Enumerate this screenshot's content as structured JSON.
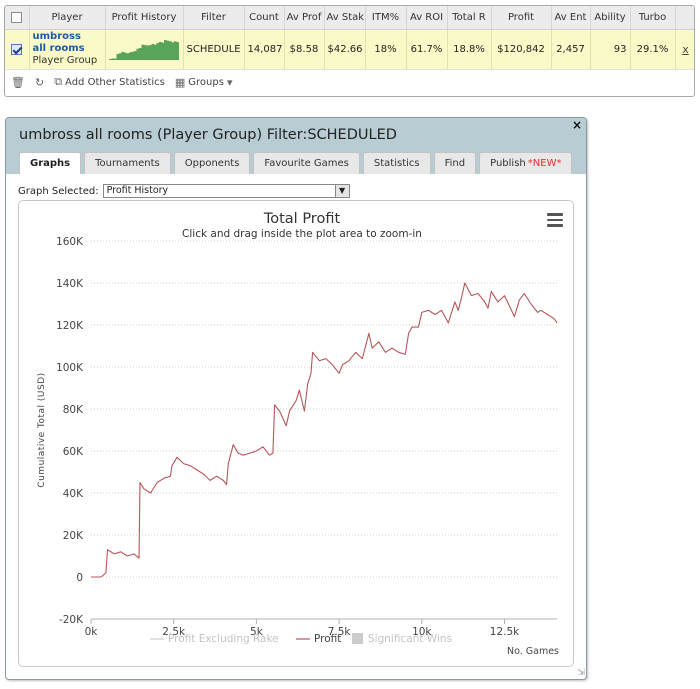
{
  "stats_table": {
    "headers": [
      "Player",
      "Profit History",
      "Filter",
      "Count",
      "Av Prof",
      "Av Stak",
      "ITM%",
      "Av ROI",
      "Total R",
      "Profit",
      "Av Ent",
      "Ability",
      "Turbo"
    ],
    "row": {
      "player_name_line1": "umbross",
      "player_name_line2": "all rooms",
      "player_type": "Player Group",
      "filter": "SCHEDULE",
      "count": "14,087",
      "av_profit": "$8.58",
      "av_stake": "$42.66",
      "itm": "18%",
      "av_roi": "61.7%",
      "total_roi": "18.8%",
      "profit": "$120,842",
      "av_entrants": "2,457",
      "ability": "93",
      "turbo": "29.1%",
      "remove": "x"
    },
    "sparkline_color": "#5aa35a",
    "toolbar": {
      "add_stats": "Add Other Statistics",
      "groups": "Groups"
    }
  },
  "dialog": {
    "title": "umbross all rooms (Player Group) Filter:SCHEDULED",
    "close": "×",
    "tabs": [
      "Graphs",
      "Tournaments",
      "Opponents",
      "Favourite Games",
      "Statistics",
      "Find",
      "Publish"
    ],
    "publish_badge": "*NEW*",
    "graph_selected_label": "Graph Selected:",
    "graph_selected_value": "Profit History"
  },
  "chart_data": {
    "type": "line",
    "title": "Total Profit",
    "subtitle": "Click and drag inside the plot area to zoom-in",
    "xlabel": "No. Games",
    "ylabel": "Cumulative Total (USD)",
    "xlim": [
      0,
      14087
    ],
    "ylim": [
      -20000,
      160000
    ],
    "x_ticks": [
      0,
      2500,
      5000,
      7500,
      10000,
      12500
    ],
    "x_tick_labels": [
      "0k",
      "2.5k",
      "5k",
      "7.5k",
      "10k",
      "12.5k"
    ],
    "y_ticks": [
      -20000,
      0,
      20000,
      40000,
      60000,
      80000,
      100000,
      120000,
      140000,
      160000
    ],
    "y_tick_labels": [
      "-20K",
      "0",
      "20K",
      "40K",
      "60K",
      "80K",
      "100K",
      "120K",
      "140K",
      "160K"
    ],
    "grid": true,
    "legend": [
      "Profit Excluding Rake",
      "Profit",
      "Significant Wins"
    ],
    "line_color": "#b5575a",
    "series": [
      {
        "name": "Profit",
        "points": [
          [
            0,
            0
          ],
          [
            300,
            0
          ],
          [
            450,
            2000
          ],
          [
            500,
            13000
          ],
          [
            700,
            11000
          ],
          [
            900,
            12000
          ],
          [
            1100,
            10000
          ],
          [
            1300,
            11000
          ],
          [
            1450,
            9000
          ],
          [
            1480,
            45000
          ],
          [
            1600,
            42000
          ],
          [
            1800,
            40000
          ],
          [
            2000,
            45000
          ],
          [
            2200,
            47000
          ],
          [
            2400,
            48000
          ],
          [
            2450,
            53000
          ],
          [
            2600,
            57000
          ],
          [
            2800,
            54000
          ],
          [
            3000,
            53000
          ],
          [
            3200,
            51000
          ],
          [
            3400,
            49000
          ],
          [
            3600,
            46000
          ],
          [
            3800,
            48000
          ],
          [
            4000,
            46000
          ],
          [
            4100,
            44000
          ],
          [
            4150,
            54000
          ],
          [
            4300,
            63000
          ],
          [
            4450,
            59000
          ],
          [
            4600,
            58000
          ],
          [
            4800,
            59000
          ],
          [
            5000,
            60000
          ],
          [
            5200,
            62000
          ],
          [
            5400,
            58000
          ],
          [
            5500,
            59000
          ],
          [
            5550,
            82000
          ],
          [
            5700,
            79000
          ],
          [
            5900,
            72000
          ],
          [
            6000,
            79000
          ],
          [
            6200,
            84000
          ],
          [
            6300,
            89000
          ],
          [
            6450,
            79000
          ],
          [
            6550,
            92000
          ],
          [
            6650,
            97000
          ],
          [
            6700,
            107000
          ],
          [
            6900,
            103000
          ],
          [
            7100,
            104000
          ],
          [
            7300,
            101000
          ],
          [
            7500,
            97000
          ],
          [
            7600,
            101000
          ],
          [
            7800,
            103000
          ],
          [
            8000,
            107000
          ],
          [
            8200,
            104000
          ],
          [
            8400,
            116000
          ],
          [
            8500,
            109000
          ],
          [
            8700,
            112000
          ],
          [
            8900,
            107000
          ],
          [
            9100,
            109000
          ],
          [
            9300,
            107000
          ],
          [
            9500,
            106000
          ],
          [
            9600,
            116000
          ],
          [
            9700,
            119000
          ],
          [
            9900,
            119000
          ],
          [
            10000,
            126000
          ],
          [
            10200,
            127000
          ],
          [
            10400,
            125000
          ],
          [
            10600,
            127000
          ],
          [
            10800,
            121000
          ],
          [
            11000,
            131000
          ],
          [
            11100,
            127000
          ],
          [
            11200,
            133000
          ],
          [
            11300,
            140000
          ],
          [
            11500,
            134000
          ],
          [
            11700,
            135000
          ],
          [
            11900,
            131000
          ],
          [
            12000,
            128000
          ],
          [
            12100,
            136000
          ],
          [
            12300,
            131000
          ],
          [
            12500,
            134000
          ],
          [
            12650,
            129000
          ],
          [
            12800,
            124000
          ],
          [
            12950,
            132000
          ],
          [
            13100,
            135000
          ],
          [
            13300,
            130000
          ],
          [
            13500,
            126000
          ],
          [
            13600,
            127000
          ],
          [
            13800,
            125000
          ],
          [
            14000,
            123000
          ],
          [
            14087,
            121000
          ]
        ]
      }
    ]
  }
}
